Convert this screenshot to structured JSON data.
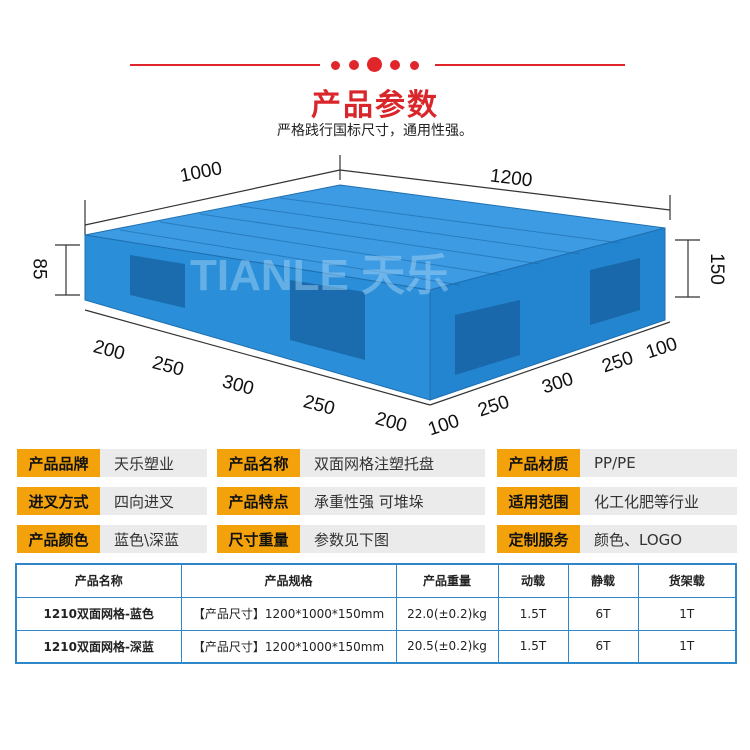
{
  "header": {
    "title": "产品参数",
    "subtitle": "严格践行国标尺寸，通用性强。",
    "accent": "#e0262b"
  },
  "dimensions": {
    "width": "1000",
    "length": "1200",
    "inner_height": "85",
    "total_height": "150",
    "left_segments": [
      "200",
      "250",
      "300",
      "250",
      "200"
    ],
    "right_segments": [
      "100",
      "250",
      "300",
      "250",
      "100"
    ],
    "watermark": "TIANLE 天乐"
  },
  "specs": [
    {
      "label": "产品品牌",
      "value": "天乐塑业"
    },
    {
      "label": "产品名称",
      "value": "双面网格注塑托盘"
    },
    {
      "label": "产品材质",
      "value": "PP/PE"
    },
    {
      "label": "进叉方式",
      "value": "四向进叉"
    },
    {
      "label": "产品特点",
      "value": "承重性强 可堆垛"
    },
    {
      "label": "适用范围",
      "value": "化工化肥等行业"
    },
    {
      "label": "产品颜色",
      "value": "蓝色\\深蓝"
    },
    {
      "label": "尺寸重量",
      "value": "参数见下图"
    },
    {
      "label": "定制服务",
      "value": "颜色、LOGO"
    }
  ],
  "table": {
    "headers": [
      "产品名称",
      "产品规格",
      "产品重量",
      "动载",
      "静载",
      "货架载"
    ],
    "rows": [
      [
        "1210双面网格-蓝色",
        "【产品尺寸】1200*1000*150mm",
        "22.0(±0.2)kg",
        "1.5T",
        "6T",
        "1T"
      ],
      [
        "1210双面网格-深蓝",
        "【产品尺寸】1200*1000*150mm",
        "20.5(±0.2)kg",
        "1.5T",
        "6T",
        "1T"
      ]
    ]
  },
  "colors": {
    "label_bg": "#f3a20b",
    "value_bg": "#ebebeb",
    "table_border": "#2f86c8",
    "pallet": "#2a8fd8"
  }
}
